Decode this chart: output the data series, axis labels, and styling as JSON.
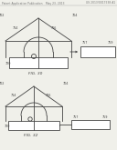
{
  "bg_color": "#f0f0ea",
  "header_text": "Patent Application Publication",
  "header_date": "May 23, 2013",
  "header_sheet": "Sheet 44 of 44",
  "header_right": "US 2013/0017538 A1",
  "fig1_label": "FIG. 30",
  "fig2_label": "FIG. 32",
  "line_color": "#444444",
  "label_color": "#555555",
  "label_fontsize": 2.4,
  "header_fontsize": 2.2
}
